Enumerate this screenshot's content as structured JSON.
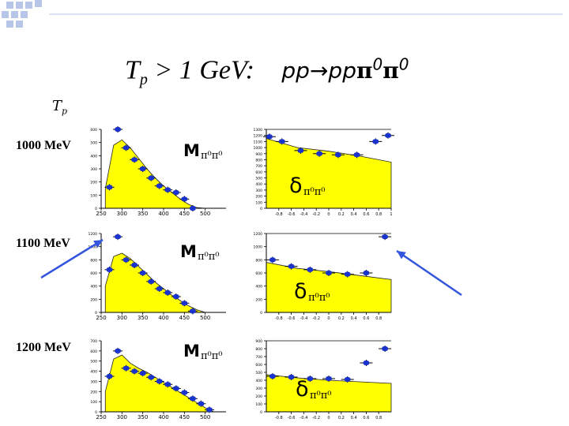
{
  "title": {
    "tp": "T",
    "tp_sub": "p",
    "cond": " > 1 GeV:",
    "reaction": "pp→pp",
    "pi": "π",
    "zero": "0"
  },
  "tp_axis_label": {
    "main": "T",
    "sub": "p"
  },
  "row_labels": [
    "1000 MeV",
    "1100 MeV",
    "1200 MeV"
  ],
  "colors": {
    "fill": "#ffff00",
    "marker": "#1a33cc",
    "arrow": "#3355dd",
    "accent_squares": "#b6c5e8"
  },
  "chart_data": [
    {
      "type": "scatter",
      "name": "M-1000",
      "label": "M",
      "sub": "π⁰π⁰",
      "xlim": [
        250,
        550
      ],
      "ylim": [
        0,
        600
      ],
      "xticks": [
        "250",
        "300",
        "350",
        "400",
        "450",
        "500"
      ],
      "yticks": [
        "0",
        "100",
        "200",
        "300",
        "400",
        "500",
        "600"
      ],
      "x": [
        270,
        290,
        310,
        330,
        350,
        370,
        390,
        410,
        430,
        450,
        470
      ],
      "y": [
        160,
        600,
        460,
        370,
        300,
        230,
        170,
        140,
        120,
        70,
        0
      ],
      "fill": [
        [
          260,
          150
        ],
        [
          280,
          480
        ],
        [
          300,
          520
        ],
        [
          320,
          460
        ],
        [
          340,
          380
        ],
        [
          360,
          300
        ],
        [
          380,
          230
        ],
        [
          400,
          170
        ],
        [
          420,
          120
        ],
        [
          440,
          70
        ],
        [
          460,
          30
        ],
        [
          480,
          5
        ],
        [
          500,
          0
        ]
      ]
    },
    {
      "type": "scatter",
      "name": "d-1000",
      "label": "δ",
      "sub": "π⁰π⁰",
      "xlim": [
        -1,
        1
      ],
      "ylim": [
        0,
        1300
      ],
      "xticks": [
        "-0.8",
        "-0.6",
        "-0.4",
        "-0.2",
        "0",
        "0.2",
        "0.4",
        "0.6",
        "0.8",
        "1"
      ],
      "yticks": [
        "0",
        "100",
        "200",
        "300",
        "400",
        "500",
        "600",
        "700",
        "800",
        "900",
        "1000",
        "1100",
        "1200",
        "1300"
      ],
      "x": [
        -0.95,
        -0.75,
        -0.45,
        -0.15,
        0.15,
        0.45,
        0.75,
        0.95
      ],
      "y": [
        1180,
        1100,
        950,
        900,
        880,
        880,
        1100,
        1200
      ],
      "fill": [
        [
          -1,
          1150
        ],
        [
          -0.5,
          1000
        ],
        [
          0,
          940
        ],
        [
          0.5,
          860
        ],
        [
          1,
          760
        ]
      ]
    },
    {
      "type": "scatter",
      "name": "M-1100",
      "label": "M",
      "sub": "π⁰π⁰",
      "xlim": [
        250,
        550
      ],
      "ylim": [
        0,
        1200
      ],
      "xticks": [
        "250",
        "300",
        "350",
        "400",
        "450",
        "500"
      ],
      "yticks": [
        "0",
        "200",
        "400",
        "600",
        "800",
        "1000",
        "1200"
      ],
      "x": [
        270,
        290,
        310,
        330,
        350,
        370,
        390,
        410,
        430,
        450,
        470
      ],
      "y": [
        650,
        1150,
        800,
        720,
        600,
        470,
        360,
        300,
        240,
        140,
        20
      ],
      "fill": [
        [
          260,
          400
        ],
        [
          280,
          850
        ],
        [
          300,
          900
        ],
        [
          320,
          820
        ],
        [
          340,
          700
        ],
        [
          360,
          580
        ],
        [
          380,
          460
        ],
        [
          400,
          360
        ],
        [
          420,
          260
        ],
        [
          440,
          180
        ],
        [
          460,
          100
        ],
        [
          480,
          40
        ],
        [
          500,
          0
        ]
      ]
    },
    {
      "type": "scatter",
      "name": "d-1100",
      "label": "δ",
      "sub": "π⁰π⁰",
      "xlim": [
        -1,
        1
      ],
      "ylim": [
        0,
        1200
      ],
      "xticks": [
        "-0.8",
        "-0.6",
        "-0.4",
        "-0.2",
        "0",
        "0.2",
        "0.4",
        "0.6",
        "0.8"
      ],
      "yticks": [
        "0",
        "200",
        "400",
        "600",
        "800",
        "1000",
        "1200"
      ],
      "x": [
        -0.9,
        -0.6,
        -0.3,
        0,
        0.3,
        0.6,
        0.9
      ],
      "y": [
        800,
        700,
        650,
        600,
        580,
        600,
        1150
      ],
      "fill": [
        [
          -1,
          760
        ],
        [
          -0.5,
          670
        ],
        [
          0,
          620
        ],
        [
          0.5,
          560
        ],
        [
          1,
          500
        ]
      ]
    },
    {
      "type": "scatter",
      "name": "M-1200",
      "label": "M",
      "sub": "π⁰π⁰",
      "xlim": [
        250,
        550
      ],
      "ylim": [
        0,
        700
      ],
      "xticks": [
        "250",
        "300",
        "350",
        "400",
        "450",
        "500"
      ],
      "yticks": [
        "0",
        "100",
        "200",
        "300",
        "400",
        "500",
        "600",
        "700"
      ],
      "x": [
        270,
        290,
        310,
        330,
        350,
        370,
        390,
        410,
        430,
        450,
        470,
        490,
        510
      ],
      "y": [
        350,
        600,
        430,
        400,
        380,
        340,
        300,
        270,
        230,
        190,
        130,
        80,
        20
      ],
      "fill": [
        [
          260,
          200
        ],
        [
          280,
          520
        ],
        [
          300,
          560
        ],
        [
          320,
          480
        ],
        [
          340,
          430
        ],
        [
          360,
          390
        ],
        [
          380,
          340
        ],
        [
          400,
          290
        ],
        [
          420,
          240
        ],
        [
          440,
          190
        ],
        [
          460,
          140
        ],
        [
          480,
          90
        ],
        [
          500,
          40
        ],
        [
          520,
          0
        ]
      ]
    },
    {
      "type": "scatter",
      "name": "d-1200",
      "label": "δ",
      "sub": "π⁰π⁰",
      "xlim": [
        -1,
        1
      ],
      "ylim": [
        0,
        900
      ],
      "xticks": [
        "-0.8",
        "-0.6",
        "-0.4",
        "-0.2",
        "0",
        "0.2",
        "0.4",
        "0.6",
        "0.8"
      ],
      "yticks": [
        "0",
        "100",
        "200",
        "300",
        "400",
        "500",
        "600",
        "700",
        "800",
        "900"
      ],
      "x": [
        -0.9,
        -0.6,
        -0.3,
        0,
        0.3,
        0.6,
        0.9
      ],
      "y": [
        450,
        440,
        420,
        420,
        410,
        620,
        800
      ],
      "fill": [
        [
          -1,
          470
        ],
        [
          -0.5,
          430
        ],
        [
          0,
          400
        ],
        [
          0.5,
          380
        ],
        [
          1,
          360
        ]
      ]
    }
  ]
}
